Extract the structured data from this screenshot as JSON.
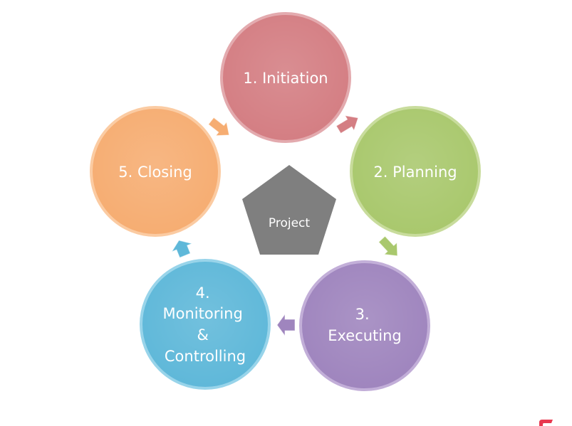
{
  "center": {
    "label": "Project",
    "color": "#7f7f7f"
  },
  "phases": [
    {
      "lines": [
        "1. Initiation"
      ],
      "color": "#d47e83",
      "edge": "#e3aaae"
    },
    {
      "lines": [
        "2. Planning"
      ],
      "color": "#a9c86d",
      "edge": "#c8dc9c"
    },
    {
      "lines": [
        "3.",
        "Executing"
      ],
      "color": "#9f85be",
      "edge": "#c2aed8"
    },
    {
      "lines": [
        "4.",
        "Monitoring",
        "&",
        "Controlling"
      ],
      "color": "#5fb8d9",
      "edge": "#98d4ea"
    },
    {
      "lines": [
        "5. Closing"
      ],
      "color": "#f6ad72",
      "edge": "#fbcba2"
    }
  ],
  "arrows": [
    {
      "from": "1. Initiation",
      "to": "2. Planning",
      "color": "#d47e83"
    },
    {
      "from": "2. Planning",
      "to": "3. Executing",
      "color": "#a9c86d"
    },
    {
      "from": "3. Executing",
      "to": "4. Monitoring & Controlling",
      "color": "#9f85be"
    },
    {
      "from": "4. Monitoring & Controlling",
      "to": "5. Closing",
      "color": "#5fb8d9"
    },
    {
      "from": "5. Closing",
      "to": "1. Initiation",
      "color": "#f6ad72"
    }
  ]
}
